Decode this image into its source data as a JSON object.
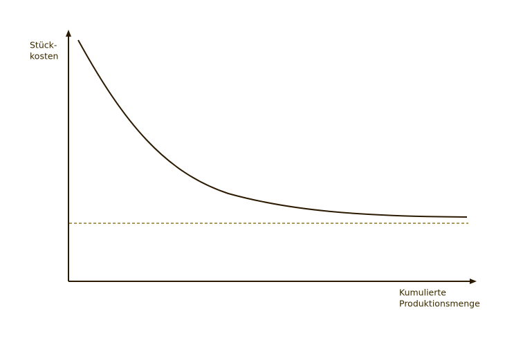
{
  "y_axis_label": {
    "line1": "Stück-",
    "line2": "kosten"
  },
  "x_axis_label": {
    "line1": "Kumulierte",
    "line2": "Produktionsmenge"
  }
}
